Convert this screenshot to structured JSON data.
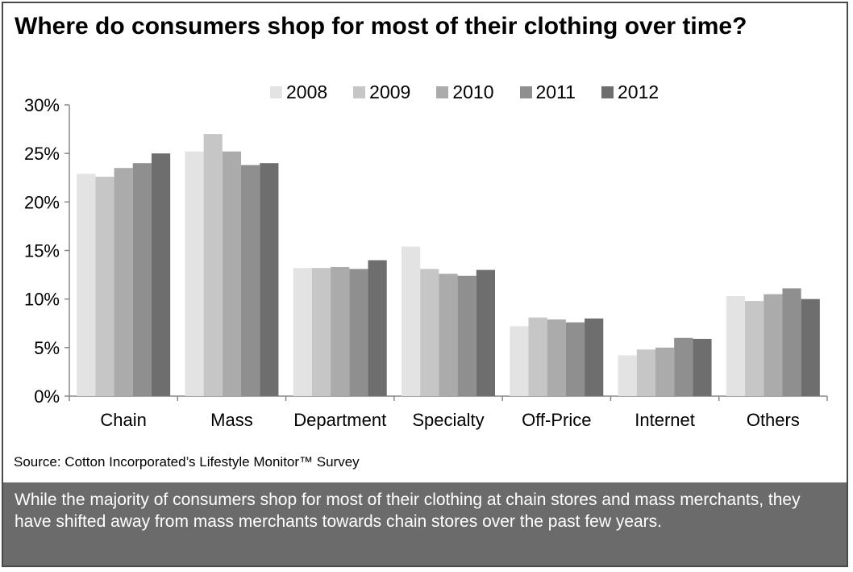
{
  "title": "Where do consumers shop for most of their clothing over time?",
  "source": "Source: Cotton Incorporated’s Lifestyle Monitor™ Survey",
  "caption": "While the majority of consumers shop for most of their clothing at chain stores and mass merchants, they have shifted away from mass merchants towards chain stores over the past few years.",
  "colors": {
    "2008": "#e3e3e3",
    "2009": "#c6c6c6",
    "2010": "#ababab",
    "2011": "#8f8f8f",
    "2012": "#6e6e6e",
    "axis": "#888888",
    "caption_bg": "#6b6b6b"
  },
  "chart_data": {
    "type": "bar",
    "categories": [
      "Chain",
      "Mass",
      "Department",
      "Specialty",
      "Off-Price",
      "Internet",
      "Others"
    ],
    "series": [
      {
        "name": "2008",
        "values": [
          22.9,
          25.2,
          13.2,
          15.4,
          7.2,
          4.2,
          10.3
        ]
      },
      {
        "name": "2009",
        "values": [
          22.6,
          27.0,
          13.2,
          13.1,
          8.1,
          4.8,
          9.8
        ]
      },
      {
        "name": "2010",
        "values": [
          23.5,
          25.2,
          13.3,
          12.6,
          7.9,
          5.0,
          10.5
        ]
      },
      {
        "name": "2011",
        "values": [
          24.0,
          23.8,
          13.1,
          12.4,
          7.6,
          6.0,
          11.1
        ]
      },
      {
        "name": "2012",
        "values": [
          25.0,
          24.0,
          14.0,
          13.0,
          8.0,
          5.9,
          10.0
        ]
      }
    ],
    "yticks": [
      "0%",
      "5%",
      "10%",
      "15%",
      "20%",
      "25%",
      "30%"
    ],
    "ylim": [
      0,
      30
    ],
    "grid": false,
    "legend_position": "top"
  }
}
